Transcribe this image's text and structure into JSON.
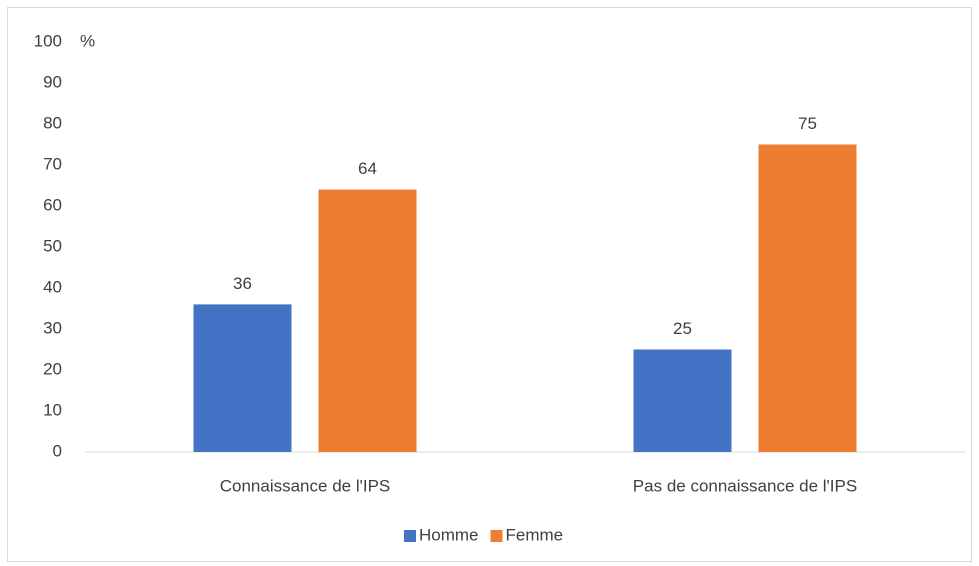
{
  "chart_data": {
    "type": "bar",
    "y_axis_label": "%",
    "categories": [
      "Connaissance de l'IPS",
      "Pas de connaissance de l'IPS"
    ],
    "series": [
      {
        "name": "Homme",
        "color": "#4472c4",
        "values": [
          36,
          25
        ]
      },
      {
        "name": "Femme",
        "color": "#ed7d31",
        "values": [
          64,
          75
        ]
      }
    ],
    "ylim": [
      0,
      100
    ],
    "yticks": [
      0,
      10,
      20,
      30,
      40,
      50,
      60,
      70,
      80,
      90,
      100
    ],
    "grid": false,
    "legend": "bottom",
    "data_labels": true
  }
}
